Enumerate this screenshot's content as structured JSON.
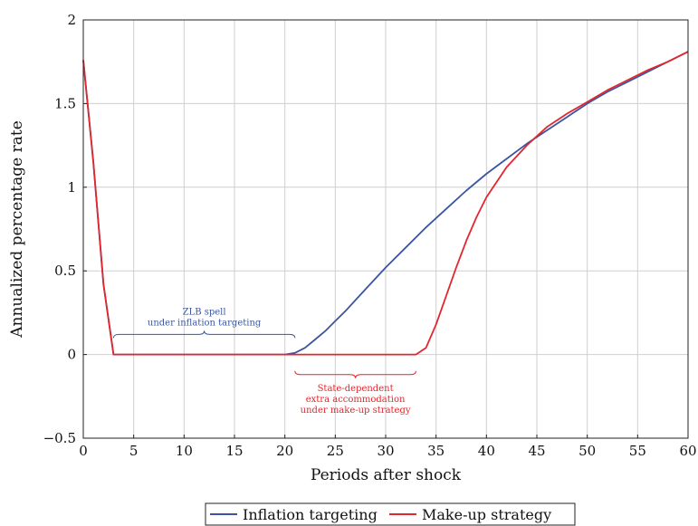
{
  "chart_data": {
    "type": "line",
    "title": "",
    "xlabel": "Periods after shock",
    "ylabel": "Annualized percentage rate",
    "xlim": [
      0,
      60
    ],
    "ylim": [
      -0.5,
      2
    ],
    "x_ticks": [
      "0",
      "5",
      "10",
      "15",
      "20",
      "25",
      "30",
      "35",
      "40",
      "45",
      "50",
      "55",
      "60"
    ],
    "y_ticks": [
      "2",
      "1.5",
      "1",
      "0.5",
      "0",
      "−0.5"
    ],
    "grid": true,
    "legend_position": "bottom",
    "series": [
      {
        "name": "Inflation targeting",
        "color": "#3b55a3",
        "x": [
          0,
          1,
          2,
          3,
          4,
          10,
          15,
          20,
          21,
          22,
          23,
          24,
          25,
          26,
          28,
          30,
          32,
          34,
          36,
          38,
          40,
          42,
          44,
          46,
          48,
          50,
          52,
          54,
          56,
          58,
          60
        ],
        "y": [
          1.76,
          1.15,
          0.42,
          0,
          0,
          0,
          0,
          0,
          0.01,
          0.04,
          0.09,
          0.14,
          0.2,
          0.26,
          0.39,
          0.52,
          0.64,
          0.76,
          0.87,
          0.98,
          1.08,
          1.17,
          1.26,
          1.34,
          1.42,
          1.5,
          1.57,
          1.63,
          1.69,
          1.75,
          1.81
        ]
      },
      {
        "name": "Make-up strategy",
        "color": "#e3262d",
        "x": [
          0,
          1,
          2,
          3,
          4,
          10,
          20,
          25,
          30,
          33,
          34,
          35,
          36,
          37,
          38,
          39,
          40,
          42,
          44,
          46,
          48,
          50,
          52,
          54,
          56,
          58,
          60
        ],
        "y": [
          1.76,
          1.15,
          0.42,
          0,
          0,
          0,
          0,
          0,
          0,
          0,
          0.04,
          0.18,
          0.35,
          0.52,
          0.68,
          0.82,
          0.94,
          1.12,
          1.25,
          1.36,
          1.44,
          1.51,
          1.58,
          1.64,
          1.7,
          1.75,
          1.81
        ]
      }
    ],
    "annotations": [
      {
        "id": "zlb",
        "lines": [
          "ZLB spell",
          "under inflation targeting"
        ],
        "color": "#3b55a3",
        "x_range": [
          3,
          21
        ],
        "y": 0.12,
        "placement": "above"
      },
      {
        "id": "makeup",
        "lines": [
          "State-dependent",
          "extra accommodation",
          "under make-up strategy"
        ],
        "color": "#e3262d",
        "x_range": [
          21,
          33
        ],
        "y": -0.12,
        "placement": "below"
      }
    ]
  }
}
